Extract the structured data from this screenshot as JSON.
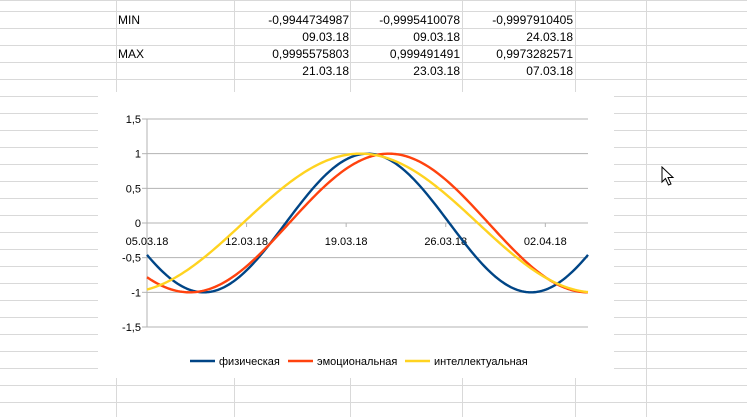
{
  "sheet": {
    "rows": [
      {
        "label": "MIN",
        "values": [
          "-0,9944734987",
          "-0,9995410078",
          "-0,9997910405"
        ]
      },
      {
        "label": "",
        "values": [
          "09.03.18",
          "09.03.18",
          "24.03.18"
        ]
      },
      {
        "label": "MAX",
        "values": [
          "0,9995575803",
          "0,999491491",
          "0,9973282571"
        ]
      },
      {
        "label": "",
        "values": [
          "21.03.18",
          "23.03.18",
          "07.03.18"
        ]
      }
    ]
  },
  "chart_data": {
    "type": "line",
    "x_tick_labels": [
      "05.03.18",
      "12.03.18",
      "19.03.18",
      "26.03.18",
      "02.04.18"
    ],
    "x_start_label": "05.03.18",
    "x_count": 32,
    "ylim": [
      -1.5,
      1.5
    ],
    "y_tick_labels": [
      "1,5",
      "1",
      "0,5",
      "0",
      "-0,5",
      "-1",
      "-1,5"
    ],
    "grid": true,
    "legend_position": "bottom",
    "series": [
      {
        "name": "физическая",
        "color": "#004586",
        "period_days": 23
      },
      {
        "name": "эмоциональная",
        "color": "#ff420e",
        "period_days": 28
      },
      {
        "name": "интеллектуальная",
        "color": "#ffd320",
        "period_days": 33
      }
    ]
  },
  "colors": {
    "grid_lines": "#d9d9d9",
    "chart_grid": "#b3b3b3"
  },
  "cursor": {
    "icon": "mouse-pointer-icon"
  }
}
